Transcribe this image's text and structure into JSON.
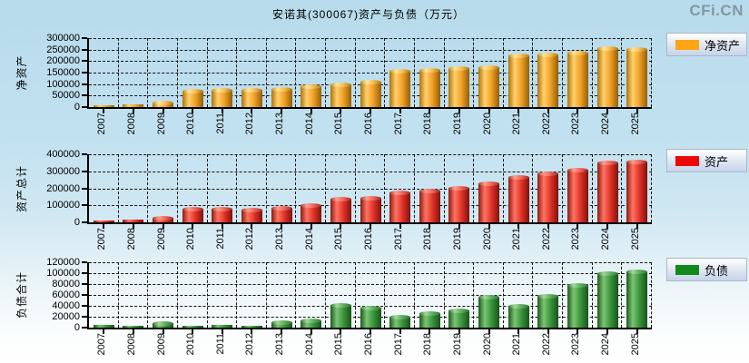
{
  "title": "安诺其(300067)资产与负债（万元）",
  "watermark": "CFi.CN",
  "chart_data": [
    {
      "type": "bar",
      "name": "net-assets",
      "title": "净资产",
      "ylabel": "净资产",
      "legend": "净资产",
      "xlabel": "",
      "categories": [
        "2007",
        "2008",
        "2009",
        "2010",
        "2011",
        "2012",
        "2013",
        "2014",
        "2015",
        "2016",
        "2017",
        "2018",
        "2019",
        "2020",
        "2021",
        "2022",
        "2023",
        "2024",
        "2025"
      ],
      "values": [
        8000,
        13000,
        20000,
        72000,
        77000,
        76000,
        80000,
        90000,
        99000,
        109000,
        156000,
        160000,
        169000,
        173000,
        227000,
        230000,
        235000,
        258000,
        251000
      ],
      "ylim": [
        0,
        300000
      ],
      "y_step": 50000,
      "grid": true,
      "legend_position": "right",
      "bar_color": "#ffa513",
      "bar_gradient": [
        "#ad7408",
        "#ffd06e",
        "#f0a026",
        "#935f04"
      ],
      "cap_gradient": [
        "#c98f1a",
        "#ffe49a",
        "#f7bd55",
        "#b07a10"
      ]
    },
    {
      "type": "bar",
      "name": "total-assets",
      "title": "资产",
      "ylabel": "资产总计",
      "legend": "资产",
      "xlabel": "",
      "categories": [
        "2007",
        "2008",
        "2009",
        "2010",
        "2011",
        "2012",
        "2013",
        "2014",
        "2015",
        "2016",
        "2017",
        "2018",
        "2019",
        "2020",
        "2021",
        "2022",
        "2023",
        "2024",
        "2025"
      ],
      "values": [
        9000,
        14000,
        25000,
        78000,
        78000,
        77000,
        88000,
        104000,
        139000,
        146000,
        174000,
        186000,
        201000,
        229000,
        266000,
        289000,
        311000,
        354000,
        355000
      ],
      "ylim": [
        0,
        400000
      ],
      "y_step": 100000,
      "grid": true,
      "legend_position": "right",
      "bar_color": "#ee0909",
      "bar_gradient": [
        "#8c1a12",
        "#ff7463",
        "#e03328",
        "#7e120c"
      ],
      "cap_gradient": [
        "#a83a30",
        "#ff9d8e",
        "#ef655a",
        "#992e24"
      ]
    },
    {
      "type": "bar",
      "name": "total-liabilities",
      "title": "负债",
      "ylabel": "负债合计",
      "legend": "负债",
      "xlabel": "",
      "categories": [
        "2007",
        "2008",
        "2009",
        "2010",
        "2011",
        "2012",
        "2013",
        "2014",
        "2015",
        "2016",
        "2017",
        "2018",
        "2019",
        "2020",
        "2021",
        "2022",
        "2023",
        "2024",
        "2025"
      ],
      "values": [
        4800,
        3200,
        7600,
        2800,
        5000,
        2800,
        9400,
        13500,
        42000,
        37500,
        20500,
        27500,
        31500,
        57000,
        40500,
        59000,
        78000,
        100000,
        103000
      ],
      "ylim": [
        0,
        120000
      ],
      "y_step": 20000,
      "grid": true,
      "legend_position": "right",
      "bar_color": "#12891b",
      "bar_gradient": [
        "#1c5a1c",
        "#7cc474",
        "#39953c",
        "#1a531a"
      ],
      "cap_gradient": [
        "#3a7a38",
        "#a2d89a",
        "#5cae5c",
        "#377237"
      ]
    }
  ]
}
